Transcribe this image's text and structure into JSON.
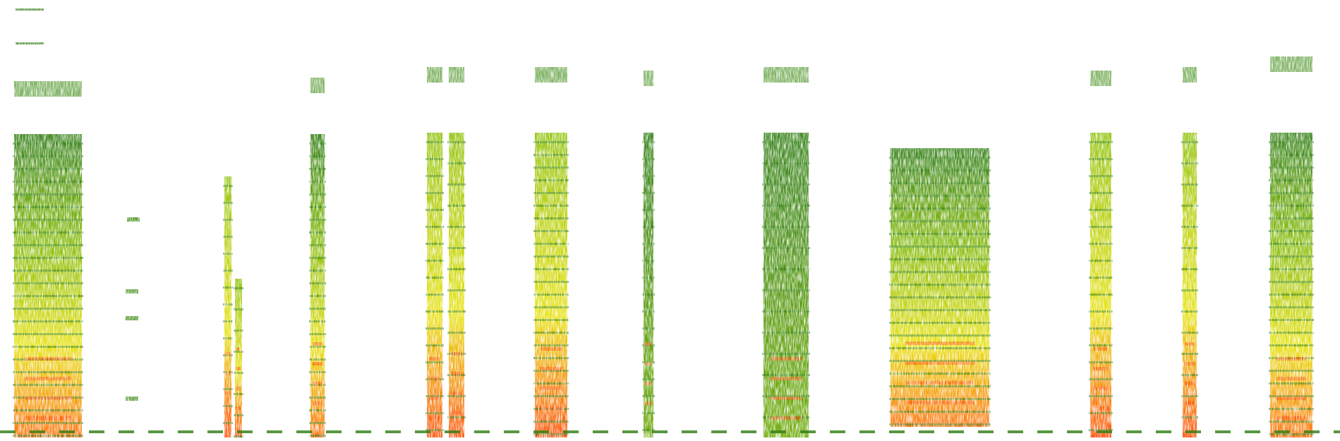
{
  "figure": {
    "kind": "spectrogram",
    "background": "#ffffff",
    "palette": {
      "low": "#2e7d10",
      "mid": "#7fb800",
      "high": "#e6e000",
      "peak": "#ff3a00"
    },
    "segment_count": 14,
    "baseline_dashed": true
  }
}
